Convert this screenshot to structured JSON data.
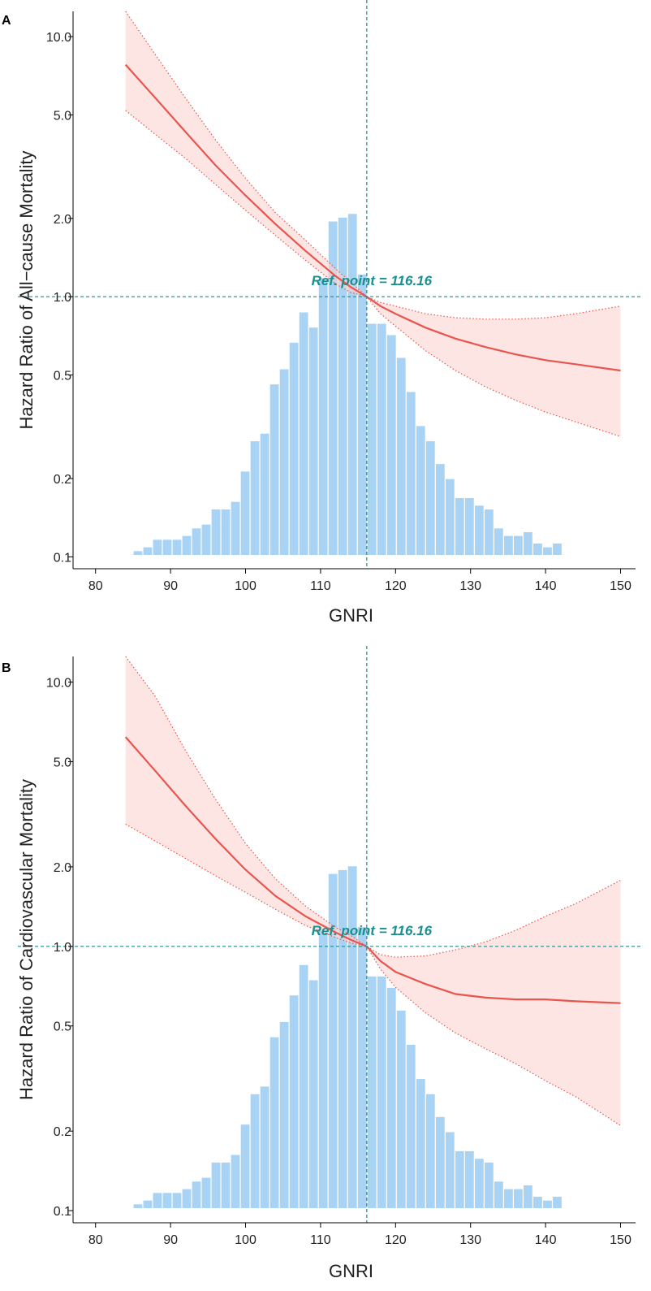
{
  "colors": {
    "histogram": "#a9d3f5",
    "curve": "#e8554e",
    "ci_fill": "#fbd3d0",
    "ci_border": "#e8554e",
    "reference": "#1a8f8f",
    "axis": "#000000"
  },
  "chart_data": [
    {
      "panel": "A",
      "type": "line",
      "xlabel": "GNRI",
      "ylabel": "Hazard Ratio of All−cause Mortality",
      "xlim": [
        77,
        152
      ],
      "ylim_log": [
        0.09,
        12.5
      ],
      "x_ticks": [
        80,
        90,
        100,
        110,
        120,
        130,
        140,
        150
      ],
      "y_ticks": [
        0.1,
        0.2,
        0.5,
        1.0,
        2.0,
        5.0,
        10.0
      ],
      "y_tick_labels": [
        "0.1",
        "0.2",
        "0.5",
        "1.0",
        "2.0",
        "5.0",
        "10.0"
      ],
      "reference": {
        "x": 116.16,
        "y": 1.0,
        "label": "Ref. point = 116.16"
      },
      "curve": {
        "x": [
          84,
          88,
          92,
          96,
          100,
          104,
          108,
          112,
          114,
          116.16,
          118,
          120,
          124,
          128,
          132,
          136,
          140,
          144,
          150
        ],
        "hr": [
          7.8,
          5.8,
          4.3,
          3.2,
          2.45,
          1.9,
          1.5,
          1.2,
          1.09,
          1.0,
          0.92,
          0.86,
          0.76,
          0.69,
          0.64,
          0.6,
          0.57,
          0.55,
          0.52
        ],
        "lower": [
          5.2,
          4.2,
          3.4,
          2.7,
          2.15,
          1.72,
          1.38,
          1.12,
          1.04,
          1.0,
          0.86,
          0.77,
          0.62,
          0.52,
          0.45,
          0.4,
          0.36,
          0.33,
          0.29
        ],
        "upper": [
          12.5,
          8.5,
          5.8,
          4.0,
          2.85,
          2.1,
          1.65,
          1.28,
          1.14,
          1.0,
          0.95,
          0.92,
          0.86,
          0.83,
          0.82,
          0.82,
          0.83,
          0.86,
          0.92
        ]
      },
      "histogram": {
        "bin_start": 85,
        "bin_width": 1.3,
        "relative_heights": [
          0.01,
          0.02,
          0.04,
          0.04,
          0.04,
          0.05,
          0.07,
          0.08,
          0.12,
          0.12,
          0.14,
          0.22,
          0.3,
          0.32,
          0.45,
          0.49,
          0.56,
          0.64,
          0.6,
          0.73,
          0.88,
          0.89,
          0.9,
          0.74,
          0.61,
          0.61,
          0.58,
          0.52,
          0.43,
          0.34,
          0.3,
          0.24,
          0.2,
          0.15,
          0.15,
          0.13,
          0.12,
          0.07,
          0.05,
          0.05,
          0.06,
          0.03,
          0.02,
          0.03
        ],
        "bin_start_x_note": "histogram relative frequency of GNRI (shown on secondary scale)"
      }
    },
    {
      "panel": "B",
      "type": "line",
      "xlabel": "GNRI",
      "ylabel": "Hazard Ratio of Cardiovascular Mortality",
      "xlim": [
        77,
        152
      ],
      "ylim_log": [
        0.09,
        12.5
      ],
      "x_ticks": [
        80,
        90,
        100,
        110,
        120,
        130,
        140,
        150
      ],
      "y_ticks": [
        0.1,
        0.2,
        0.5,
        1.0,
        2.0,
        5.0,
        10.0
      ],
      "y_tick_labels": [
        "0.1",
        "0.2",
        "0.5",
        "1.0",
        "2.0",
        "5.0",
        "10.0"
      ],
      "reference": {
        "x": 116.16,
        "y": 1.0,
        "label": "Ref. point = 116.16"
      },
      "curve": {
        "x": [
          84,
          88,
          92,
          96,
          100,
          104,
          108,
          112,
          114,
          116.16,
          118,
          120,
          124,
          128,
          132,
          136,
          140,
          144,
          150
        ],
        "hr": [
          6.2,
          4.6,
          3.4,
          2.55,
          1.95,
          1.55,
          1.3,
          1.13,
          1.06,
          1.0,
          0.88,
          0.8,
          0.72,
          0.66,
          0.64,
          0.63,
          0.63,
          0.62,
          0.61
        ],
        "lower": [
          2.9,
          2.5,
          2.15,
          1.85,
          1.6,
          1.38,
          1.2,
          1.08,
          1.03,
          1.0,
          0.82,
          0.7,
          0.56,
          0.47,
          0.41,
          0.36,
          0.31,
          0.27,
          0.21
        ],
        "upper": [
          12.5,
          8.8,
          5.5,
          3.6,
          2.45,
          1.8,
          1.42,
          1.18,
          1.1,
          1.0,
          0.93,
          0.91,
          0.92,
          0.97,
          1.04,
          1.15,
          1.3,
          1.45,
          1.78
        ]
      },
      "histogram": {
        "bin_start": 85,
        "bin_width": 1.3,
        "relative_heights": [
          0.01,
          0.02,
          0.04,
          0.04,
          0.04,
          0.05,
          0.07,
          0.08,
          0.12,
          0.12,
          0.14,
          0.22,
          0.3,
          0.32,
          0.45,
          0.49,
          0.56,
          0.64,
          0.6,
          0.73,
          0.88,
          0.89,
          0.9,
          0.74,
          0.61,
          0.61,
          0.58,
          0.52,
          0.43,
          0.34,
          0.3,
          0.24,
          0.2,
          0.15,
          0.15,
          0.13,
          0.12,
          0.07,
          0.05,
          0.05,
          0.06,
          0.03,
          0.02,
          0.03
        ],
        "bin_start_x_note": "histogram relative frequency of GNRI (shown on secondary scale)"
      }
    }
  ]
}
